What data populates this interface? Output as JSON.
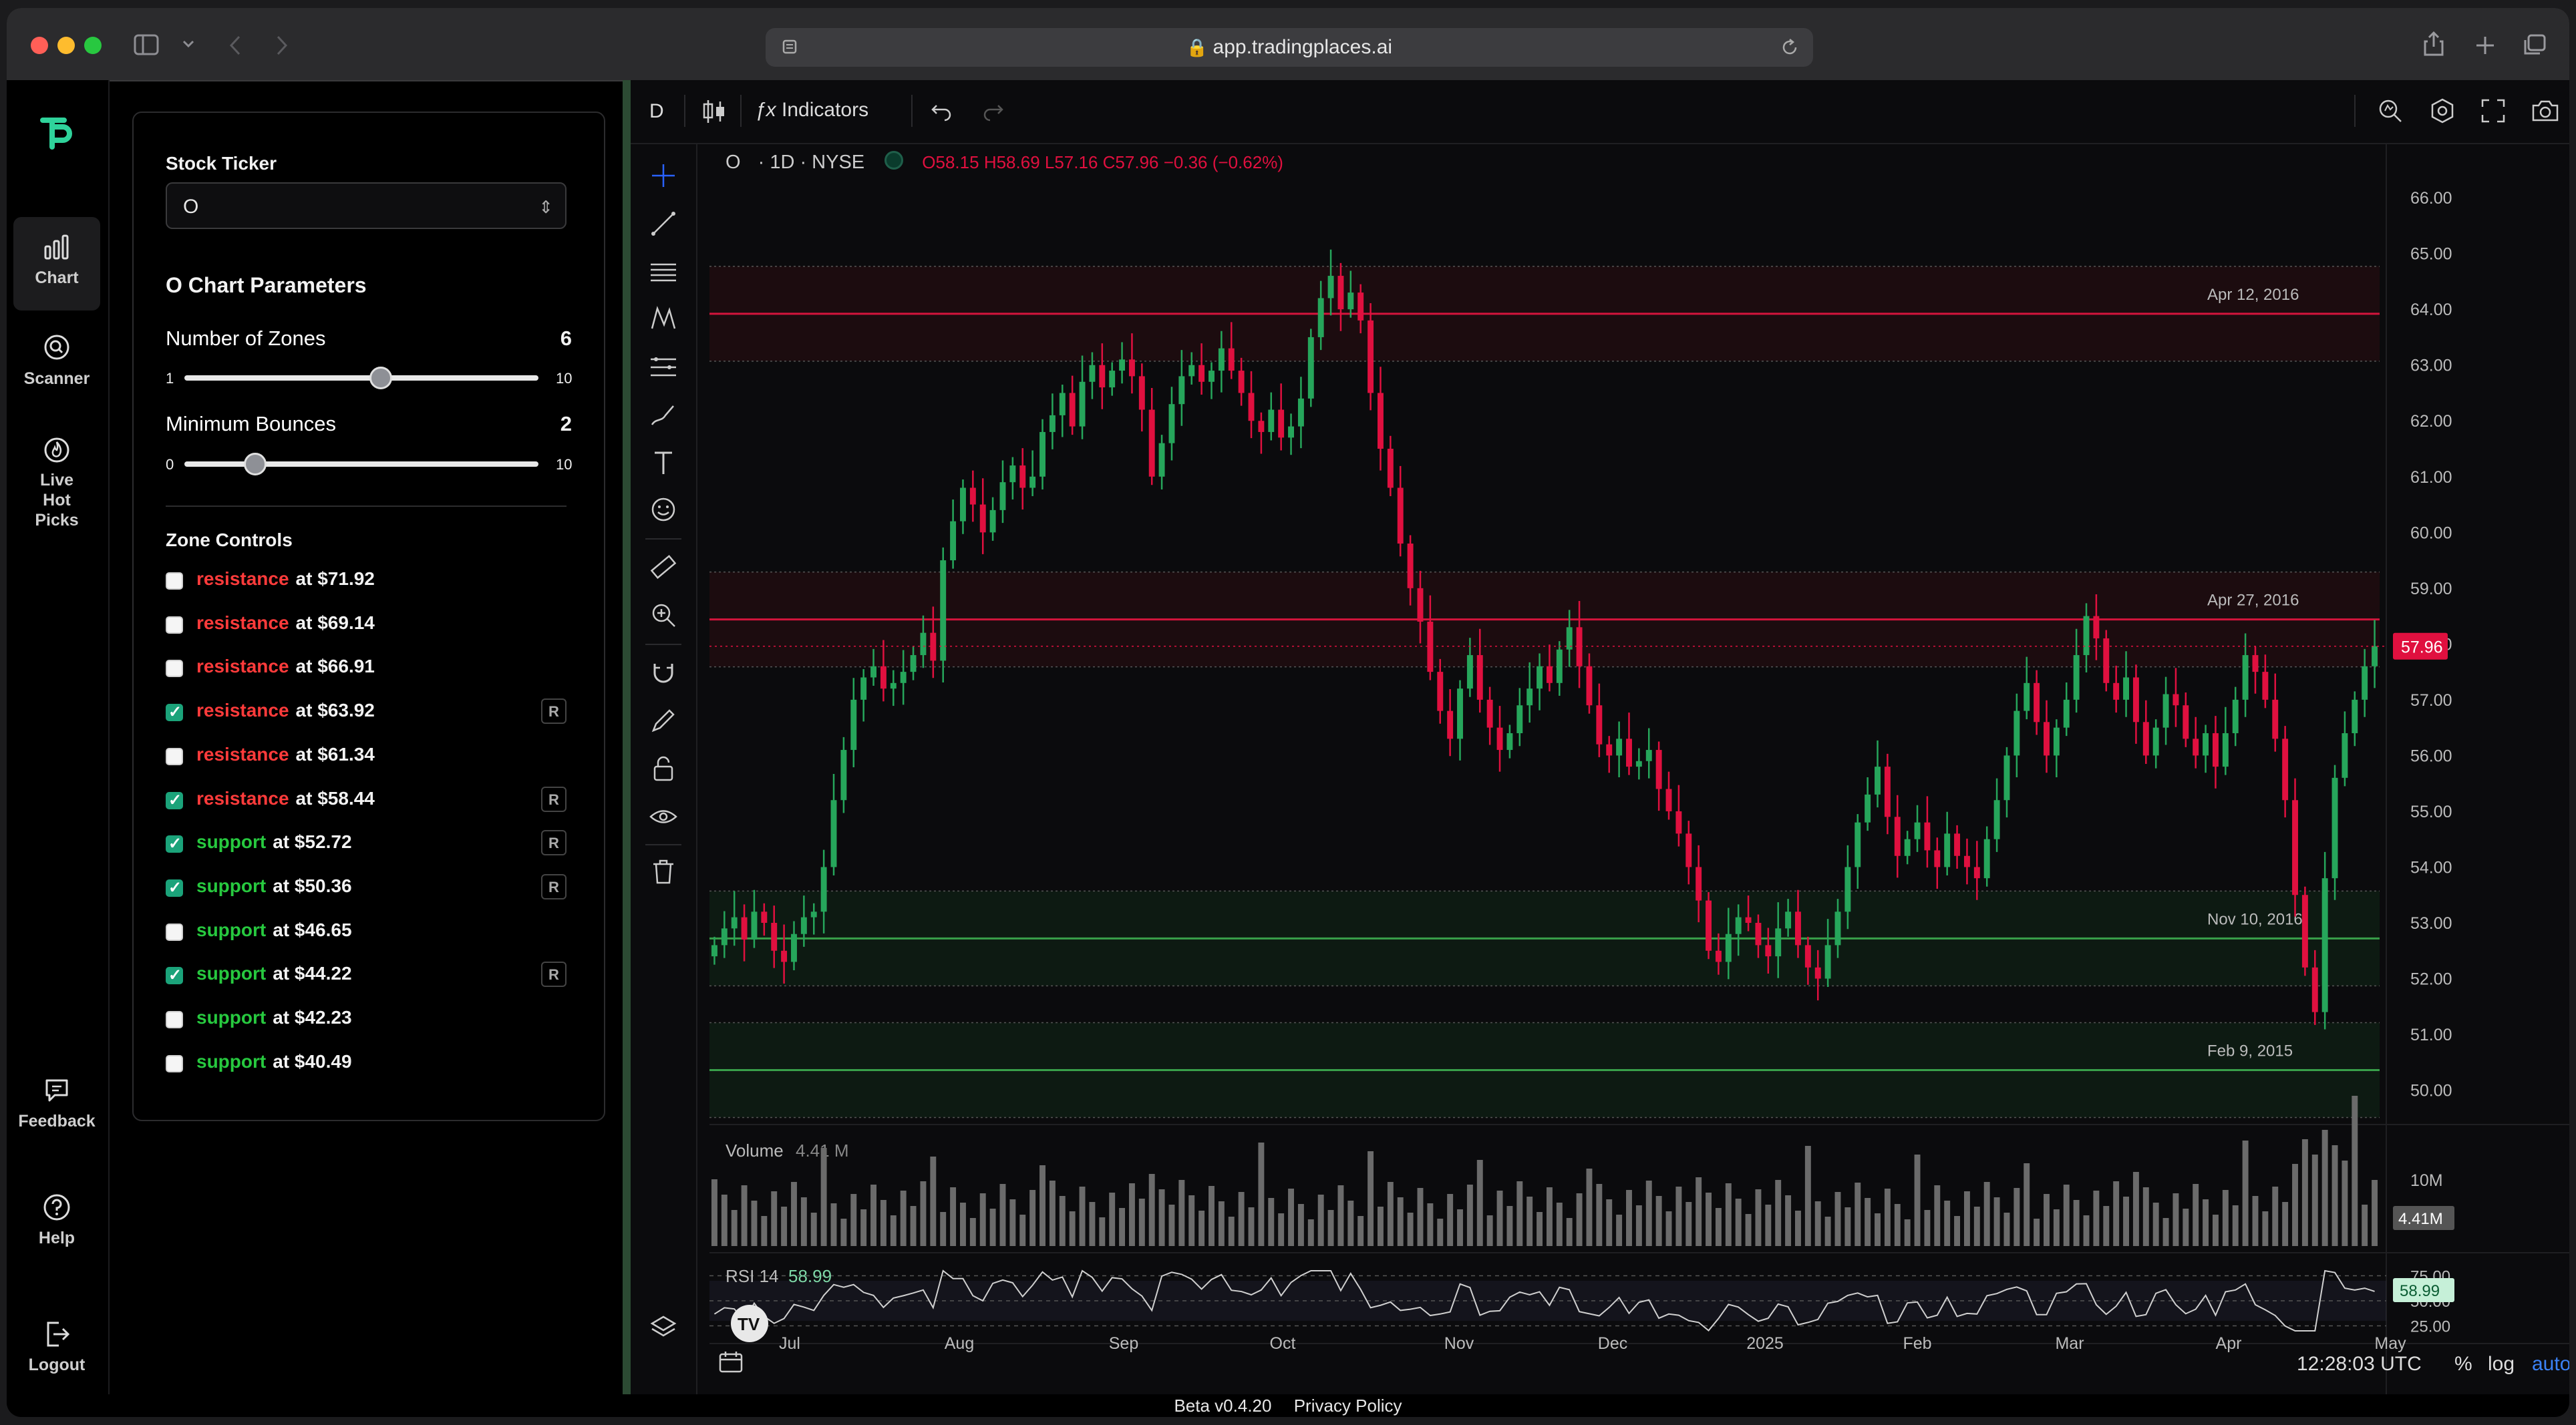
{
  "browser": {
    "url": "app.tradingplaces.ai"
  },
  "nav": {
    "items": [
      {
        "label": "Chart",
        "icon": "bar-chart-icon",
        "active": true
      },
      {
        "label": "Scanner",
        "icon": "search-icon"
      },
      {
        "label": "Live Hot Picks",
        "icon": "flame-icon"
      },
      {
        "label": "Feedback",
        "icon": "chat-icon"
      },
      {
        "label": "Help",
        "icon": "help-icon"
      },
      {
        "label": "Logout",
        "icon": "logout-icon"
      }
    ]
  },
  "panel": {
    "ticker_label": "Stock Ticker",
    "ticker_value": "O",
    "params_title": "O Chart Parameters",
    "zones": {
      "label": "Number of Zones",
      "value": "6",
      "min": "1",
      "max": "10",
      "level": 0.5556
    },
    "bounces": {
      "label": "Minimum Bounces",
      "value": "2",
      "min": "0",
      "max": "10",
      "level": 0.2
    },
    "zone_controls_title": "Zone Controls",
    "zone_list": [
      {
        "kind": "resistance",
        "text": "at $71.92",
        "checked": false,
        "r": ""
      },
      {
        "kind": "resistance",
        "text": "at $69.14",
        "checked": false,
        "r": ""
      },
      {
        "kind": "resistance",
        "text": "at $66.91",
        "checked": false,
        "r": ""
      },
      {
        "kind": "resistance",
        "text": "at $63.92",
        "checked": true,
        "r": "R"
      },
      {
        "kind": "resistance",
        "text": "at $61.34",
        "checked": false,
        "r": ""
      },
      {
        "kind": "resistance",
        "text": "at $58.44",
        "checked": true,
        "r": "R"
      },
      {
        "kind": "support",
        "text": "at $52.72",
        "checked": true,
        "r": "R"
      },
      {
        "kind": "support",
        "text": "at $50.36",
        "checked": true,
        "r": "R"
      },
      {
        "kind": "support",
        "text": "at $46.65",
        "checked": false,
        "r": ""
      },
      {
        "kind": "support",
        "text": "at $44.22",
        "checked": true,
        "r": "R"
      },
      {
        "kind": "support",
        "text": "at $42.23",
        "checked": false,
        "r": ""
      },
      {
        "kind": "support",
        "text": "at $40.49",
        "checked": false,
        "r": ""
      }
    ]
  },
  "toolbar": {
    "interval": "D",
    "indicators": "Indicators"
  },
  "legend": {
    "symbol": "O",
    "meta": "· 1D · NYSE",
    "o": "O58.15",
    "h": "H58.69",
    "l": "L57.16",
    "c": "C57.96",
    "change": "−0.36 (−0.62%)"
  },
  "chart_data": {
    "type": "candlestick",
    "ylim": [
      49.6,
      66.6
    ],
    "price_ticks": [
      "66.00",
      "65.00",
      "64.00",
      "63.00",
      "62.00",
      "61.00",
      "60.00",
      "59.00",
      "58.00",
      "57.00",
      "56.00",
      "55.00",
      "54.00",
      "53.00",
      "52.00",
      "51.00",
      "50.00"
    ],
    "x_labels": [
      "Jul",
      "Aug",
      "Sep",
      "Oct",
      "Nov",
      "Dec",
      "2025",
      "Feb",
      "Mar",
      "Apr",
      "May"
    ],
    "last_price": "57.96",
    "zones": [
      {
        "type": "resistance",
        "price": 63.92,
        "label": "Apr 12, 2016"
      },
      {
        "type": "resistance",
        "price": 58.44,
        "label": "Apr 27, 2016"
      },
      {
        "type": "support",
        "price": 52.72,
        "label": "Nov 10, 2016"
      },
      {
        "type": "support",
        "price": 50.36,
        "label": "Feb 9, 2015"
      }
    ],
    "closes": [
      52.6,
      52.9,
      53.1,
      52.7,
      53.2,
      53.0,
      52.5,
      52.3,
      52.8,
      53.1,
      53.2,
      54.0,
      55.2,
      56.1,
      57.0,
      57.4,
      57.6,
      57.2,
      57.3,
      57.5,
      57.8,
      58.2,
      57.7,
      59.5,
      60.2,
      60.8,
      60.5,
      60.0,
      60.4,
      60.9,
      61.2,
      60.8,
      61.0,
      61.8,
      62.1,
      62.5,
      61.9,
      62.7,
      63.0,
      62.6,
      62.9,
      63.1,
      62.8,
      62.2,
      61.0,
      61.6,
      62.3,
      62.8,
      63.0,
      62.7,
      62.9,
      63.3,
      62.9,
      62.5,
      62.0,
      61.8,
      62.2,
      61.7,
      61.9,
      62.4,
      63.5,
      64.2,
      64.6,
      64.0,
      64.3,
      63.8,
      62.5,
      61.5,
      60.8,
      59.8,
      59.0,
      58.4,
      57.5,
      56.8,
      56.3,
      57.2,
      57.8,
      57.0,
      56.5,
      56.1,
      56.4,
      56.9,
      57.2,
      57.6,
      57.3,
      57.9,
      58.3,
      57.6,
      56.9,
      56.2,
      56.0,
      56.3,
      55.8,
      55.9,
      56.1,
      55.4,
      55.0,
      54.6,
      54.0,
      53.4,
      52.5,
      52.3,
      52.8,
      53.1,
      53.0,
      52.6,
      52.4,
      52.9,
      53.2,
      52.6,
      52.2,
      52.0,
      52.6,
      53.2,
      54.0,
      54.8,
      55.3,
      55.8,
      54.9,
      54.2,
      54.5,
      54.8,
      54.3,
      54.0,
      54.6,
      54.2,
      54.0,
      53.8,
      54.5,
      55.2,
      56.0,
      56.8,
      57.3,
      56.6,
      56.0,
      56.5,
      57.0,
      57.8,
      58.5,
      58.1,
      57.3,
      57.0,
      57.4,
      56.6,
      56.0,
      56.5,
      57.1,
      56.9,
      56.3,
      56.0,
      56.4,
      55.8,
      56.4,
      57.0,
      57.8,
      57.5,
      57.0,
      56.3,
      55.2,
      53.5,
      52.2,
      51.4,
      53.8,
      55.6,
      56.4,
      57.0,
      57.6,
      57.96
    ],
    "volume_label": "Volume",
    "volume_value": "4.41 M",
    "volume_ticks": [
      "10M"
    ],
    "volume_tag": "4.41M",
    "rsi_label": "RSI 14",
    "rsi_value": "58.99",
    "rsi_ticks": [
      "75.00",
      "50.00",
      "25.00"
    ],
    "rsi_tag": "58.99"
  },
  "bottom": {
    "time": "12:28:03 UTC",
    "pct": "%",
    "log": "log",
    "auto": "auto"
  },
  "footer": {
    "version": "Beta v0.4.20",
    "privacy": "Privacy Policy"
  },
  "colors": {
    "up": "#26a65b",
    "down": "#e0103f",
    "resistance": "#ff3b3b",
    "support": "#27c93f",
    "bg": "#0b0b0d"
  }
}
